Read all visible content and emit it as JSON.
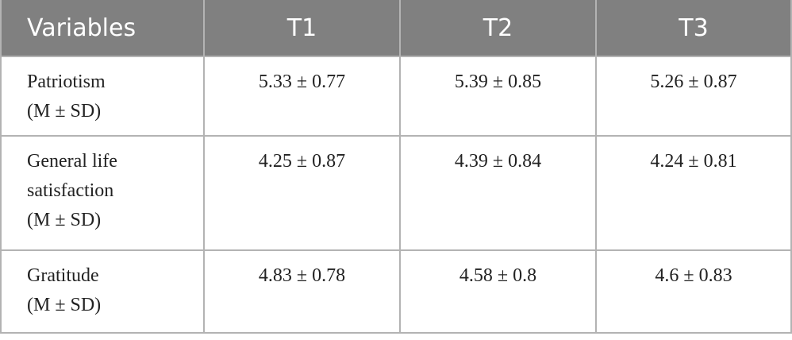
{
  "table": {
    "header": [
      "Variables",
      "T1",
      "T2",
      "T3"
    ],
    "rows": [
      [
        [
          "Patriotism",
          "(M ± SD)"
        ],
        "5.33 ± 0.77",
        "5.39 ± 0.85",
        "5.26 ± 0.87"
      ],
      [
        [
          "General life",
          "satisfaction",
          "(M ± SD)"
        ],
        "4.25 ± 0.87",
        "4.39 ± 0.84",
        "4.24 ± 0.81"
      ],
      [
        [
          "Gratitude",
          "(M ± SD)"
        ],
        "4.83 ± 0.78",
        "4.58 ± 0.8",
        "4.6 ± 0.83"
      ]
    ]
  }
}
